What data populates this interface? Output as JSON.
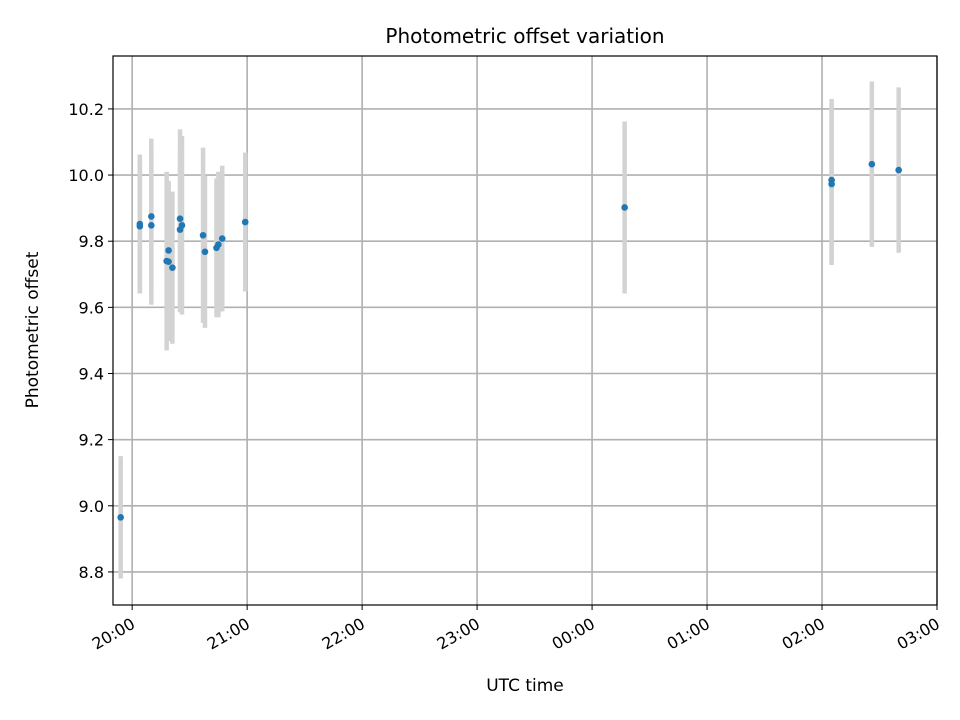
{
  "chart_data": {
    "type": "scatter",
    "title": "Photometric offset variation",
    "xlabel": "UTC time",
    "ylabel": "Photometric offset",
    "grid": true,
    "x_unit": "UTC time of day (hours, past midnight continues beyond 24)",
    "xlim": [
      "19:50",
      "03:00"
    ],
    "ylim": [
      8.7,
      10.36
    ],
    "xticks": [
      "20:00",
      "21:00",
      "22:00",
      "23:00",
      "00:00",
      "01:00",
      "02:00",
      "03:00"
    ],
    "yticks": [
      "8.8",
      "9.0",
      "9.2",
      "9.4",
      "9.6",
      "9.8",
      "10.0",
      "10.2"
    ],
    "marker_color": "#1f77b4",
    "errorbar_color": "#d3d3d3",
    "points": [
      {
        "x": "19:54",
        "y": 8.965,
        "err": 0.185
      },
      {
        "x": "20:04",
        "y": 9.845,
        "err": 0.2
      },
      {
        "x": "20:04",
        "y": 9.852,
        "err": 0.21
      },
      {
        "x": "20:10",
        "y": 9.875,
        "err": 0.235
      },
      {
        "x": "20:10",
        "y": 9.848,
        "err": 0.24
      },
      {
        "x": "20:18",
        "y": 9.74,
        "err": 0.27
      },
      {
        "x": "20:19",
        "y": 9.738,
        "err": 0.24
      },
      {
        "x": "20:19",
        "y": 9.772,
        "err": 0.21
      },
      {
        "x": "20:21",
        "y": 9.72,
        "err": 0.23
      },
      {
        "x": "20:25",
        "y": 9.868,
        "err": 0.27
      },
      {
        "x": "20:25",
        "y": 9.835,
        "err": 0.25
      },
      {
        "x": "20:26",
        "y": 9.848,
        "err": 0.27
      },
      {
        "x": "20:37",
        "y": 9.818,
        "err": 0.265
      },
      {
        "x": "20:38",
        "y": 9.768,
        "err": 0.23
      },
      {
        "x": "20:44",
        "y": 9.78,
        "err": 0.21
      },
      {
        "x": "20:45",
        "y": 9.79,
        "err": 0.22
      },
      {
        "x": "20:47",
        "y": 9.808,
        "err": 0.22
      },
      {
        "x": "20:59",
        "y": 9.858,
        "err": 0.21
      },
      {
        "x": "00:17",
        "y": 9.902,
        "err": 0.26
      },
      {
        "x": "02:05",
        "y": 9.973,
        "err": 0.245
      },
      {
        "x": "02:05",
        "y": 9.985,
        "err": 0.245
      },
      {
        "x": "02:26",
        "y": 10.033,
        "err": 0.25
      },
      {
        "x": "02:40",
        "y": 10.015,
        "err": 0.25
      }
    ]
  }
}
